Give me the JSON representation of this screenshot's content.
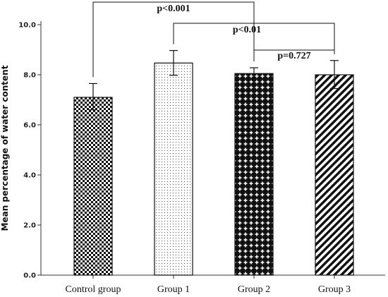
{
  "chart_data": {
    "type": "bar",
    "title": "",
    "xlabel": "",
    "ylabel": "Mean percentage of water  content",
    "categories": [
      "Control group",
      "Group 1",
      "Group 2",
      "Group 3"
    ],
    "values": [
      7.1,
      8.47,
      8.05,
      8.0
    ],
    "error_low": [
      6.6,
      7.98,
      7.85,
      7.45
    ],
    "error_high": [
      7.65,
      8.97,
      8.28,
      8.57
    ],
    "patterns": [
      "checker",
      "dots",
      "crosses",
      "diagonal"
    ],
    "ylim": [
      0,
      10
    ],
    "yticks": [
      "0.0",
      "2.0",
      "4.0",
      "6.0",
      "8.0",
      "10.0"
    ],
    "grid": false,
    "annotations": [
      {
        "text": "p<0.001",
        "from": 0,
        "to": 2,
        "level": 0
      },
      {
        "text": "p<0.01",
        "from": 1,
        "to": 3,
        "level": 1
      },
      {
        "text": "p=0.727",
        "from": 2,
        "to": 3,
        "level": 2
      }
    ]
  }
}
